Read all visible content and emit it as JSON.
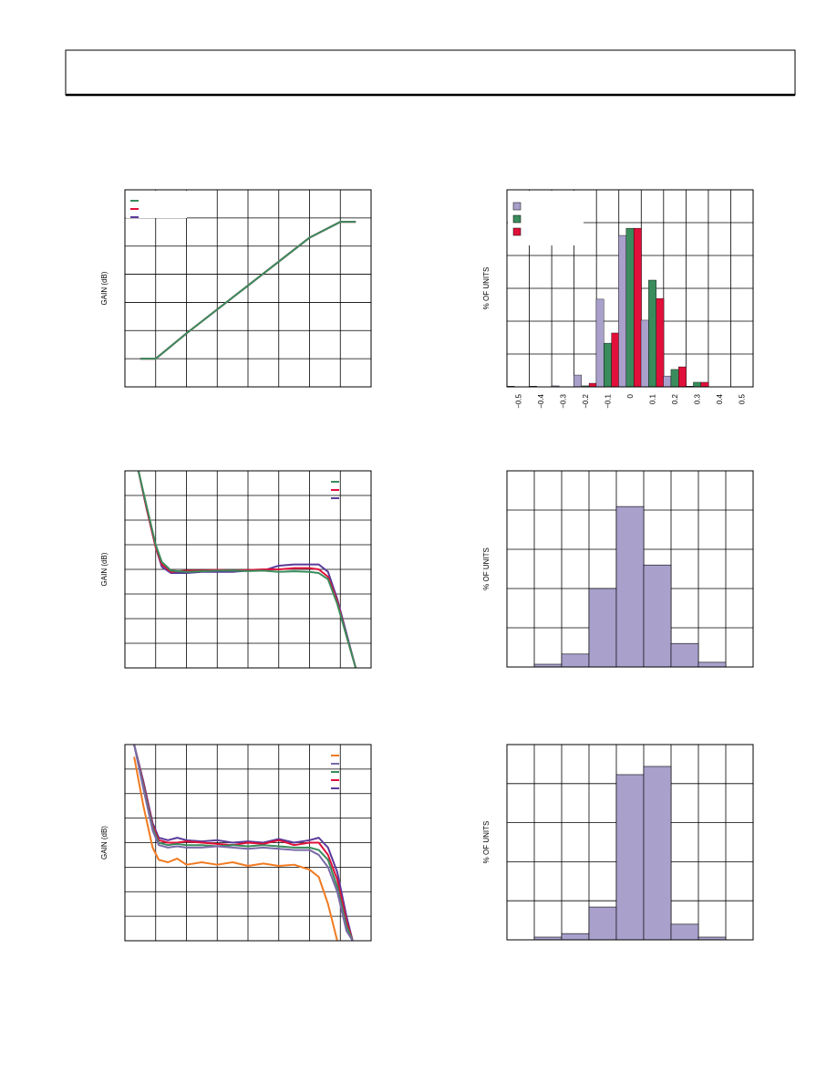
{
  "chart_data": [
    {
      "type": "line",
      "ylabel": "GAIN (dB)",
      "xlim": [
        0,
        8
      ],
      "ylim": [
        0,
        7
      ],
      "grid": true,
      "legend": "upper left",
      "x": [
        0.5,
        1,
        2,
        3,
        4,
        5,
        6,
        7,
        7.5
      ],
      "series": [
        {
          "color": "#5b3a9a",
          "values": [
            1,
            1,
            1.9,
            2.75,
            3.6,
            4.45,
            5.3,
            5.86,
            5.86
          ]
        },
        {
          "color": "#e0103a",
          "values": [
            1,
            1,
            1.9,
            2.75,
            3.6,
            4.45,
            5.3,
            5.86,
            5.86
          ]
        },
        {
          "color": "#3a8c5c",
          "values": [
            1,
            1,
            1.9,
            2.75,
            3.6,
            4.45,
            5.3,
            5.86,
            5.86
          ]
        }
      ]
    },
    {
      "type": "bar",
      "ylabel": "% OF UNITS",
      "ylim": [
        0,
        6
      ],
      "grid": true,
      "legend": "upper left",
      "categories": [
        "−0.5",
        "−0.4",
        "−0.3",
        "−0.2",
        "−0.1",
        "0",
        "0.1",
        "0.2",
        "0.3",
        "0.4",
        "0.5"
      ],
      "series": [
        {
          "color": "#a9a0cc",
          "values": [
            0.02,
            0.02,
            0.03,
            0.36,
            2.67,
            4.61,
            2.03,
            0.33,
            0.02,
            0,
            0
          ]
        },
        {
          "color": "#3a8c5c",
          "values": [
            0,
            0,
            0,
            0.03,
            1.33,
            4.83,
            3.25,
            0.53,
            0.14,
            0,
            0
          ]
        },
        {
          "color": "#e0103a",
          "values": [
            0,
            0,
            0,
            0.11,
            1.64,
            4.83,
            2.69,
            0.61,
            0.14,
            0,
            0
          ]
        }
      ]
    },
    {
      "type": "line",
      "ylabel": "GAIN (dB)",
      "xlim": [
        0,
        8
      ],
      "ylim": [
        0,
        8
      ],
      "grid": true,
      "legend": "upper right",
      "x": [
        0.44,
        0.7,
        1.0,
        1.2,
        1.5,
        2,
        2.5,
        3,
        3.5,
        4,
        4.5,
        5,
        5.5,
        6,
        6.3,
        6.6,
        6.9,
        7.2,
        7.5
      ],
      "series": [
        {
          "color": "#5b3a9a",
          "values": [
            8,
            6.5,
            4.9,
            4.1,
            3.85,
            3.85,
            3.9,
            3.9,
            3.9,
            3.95,
            3.95,
            4.15,
            4.2,
            4.2,
            4.2,
            3.9,
            2.8,
            1.4,
            0
          ]
        },
        {
          "color": "#e0103a",
          "values": [
            8,
            6.5,
            4.9,
            4.2,
            3.9,
            3.95,
            3.95,
            3.98,
            3.95,
            3.97,
            4.0,
            4.0,
            4.05,
            4.05,
            4.0,
            3.7,
            2.7,
            1.3,
            0
          ]
        },
        {
          "color": "#3a8c5c",
          "values": [
            8,
            6.6,
            5.0,
            4.3,
            3.95,
            3.9,
            3.92,
            3.95,
            3.95,
            3.93,
            3.95,
            3.9,
            3.92,
            3.9,
            3.85,
            3.6,
            2.6,
            1.3,
            0
          ]
        }
      ]
    },
    {
      "type": "histogram",
      "ylabel": "% OF UNITS",
      "xlim": [
        0,
        9
      ],
      "ylim": [
        0,
        5
      ],
      "grid": true,
      "color": "#a9a0cc",
      "bins": [
        0,
        1,
        2,
        3,
        4,
        5,
        6,
        7,
        8,
        9
      ],
      "counts": [
        0,
        0.07,
        0.33,
        2.0,
        4.09,
        2.6,
        0.6,
        0.12,
        0
      ]
    },
    {
      "type": "line",
      "ylabel": "GAIN (dB)",
      "xlim": [
        0,
        8
      ],
      "ylim": [
        0,
        8
      ],
      "grid": true,
      "legend": "upper right",
      "x": [
        0.3,
        0.6,
        0.9,
        1.1,
        1.4,
        1.7,
        2,
        2.5,
        3,
        3.5,
        4,
        4.5,
        5,
        5.5,
        6,
        6.3,
        6.6,
        6.9,
        7.2,
        7.4
      ],
      "series": [
        {
          "color": "#5b3a9a",
          "values": [
            8,
            6.5,
            4.8,
            4.2,
            4.1,
            4.2,
            4.1,
            4.05,
            4.1,
            4.0,
            4.05,
            4.0,
            4.15,
            4.0,
            4.1,
            4.2,
            3.8,
            2.8,
            1,
            0
          ]
        },
        {
          "color": "#e0103a",
          "values": [
            8,
            6.4,
            4.7,
            4.1,
            4.0,
            4.0,
            4.05,
            4.0,
            3.95,
            3.9,
            4.0,
            3.95,
            4.1,
            3.9,
            4.0,
            4.0,
            3.5,
            2.5,
            0.8,
            0
          ]
        },
        {
          "color": "#3a8c5c",
          "values": [
            8,
            6.3,
            4.6,
            4.0,
            3.9,
            3.95,
            3.9,
            3.9,
            3.85,
            3.9,
            3.85,
            3.9,
            3.85,
            3.8,
            3.8,
            3.7,
            3.3,
            2.2,
            0.6,
            0
          ]
        },
        {
          "color": "#7a6aa8",
          "values": [
            8,
            6.2,
            4.5,
            3.9,
            3.8,
            3.85,
            3.8,
            3.8,
            3.85,
            3.8,
            3.75,
            3.8,
            3.75,
            3.7,
            3.7,
            3.5,
            3.0,
            2.0,
            0.4,
            0
          ]
        },
        {
          "color": "#f07a20",
          "values": [
            7.5,
            5.5,
            3.8,
            3.3,
            3.2,
            3.35,
            3.1,
            3.2,
            3.1,
            3.2,
            3.05,
            3.15,
            3.05,
            3.1,
            2.9,
            2.6,
            1.5,
            0,
            null,
            null
          ]
        }
      ]
    },
    {
      "type": "histogram",
      "ylabel": "% OF UNITS",
      "xlim": [
        0,
        9
      ],
      "ylim": [
        0,
        5
      ],
      "grid": true,
      "color": "#a9a0cc",
      "bins": [
        0,
        1,
        2,
        3,
        4,
        5,
        6,
        7,
        8,
        9
      ],
      "counts": [
        0,
        0.07,
        0.16,
        0.84,
        4.23,
        4.44,
        0.4,
        0.07,
        0
      ]
    }
  ]
}
